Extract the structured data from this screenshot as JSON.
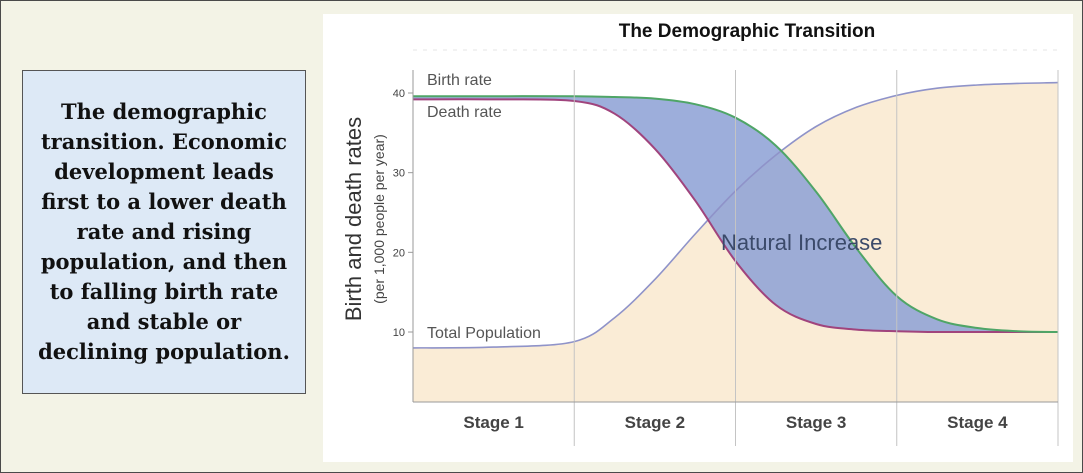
{
  "side_box": {
    "text": "The demographic transition.  Economic development leads first to a lower death rate and rising population, and then to falling birth rate and stable or declining population."
  },
  "chart_data": {
    "type": "line",
    "title": "The Demographic Transition",
    "ylabel": "Birth and death rates",
    "ylabel_sub": "(per 1,000 people per year)",
    "y_ticks": [
      10,
      20,
      30,
      40
    ],
    "ylim": [
      0,
      41.5
    ],
    "x_categories": [
      "Stage 1",
      "Stage 2",
      "Stage 3",
      "Stage 4"
    ],
    "x": [
      0,
      0.5,
      1,
      1.25,
      1.5,
      1.75,
      2,
      2.25,
      2.5,
      2.75,
      3,
      3.25,
      3.5,
      3.75,
      4
    ],
    "series": [
      {
        "name": "Birth rate",
        "color": "#4fa567",
        "values": [
          39.6,
          39.6,
          39.6,
          39.5,
          39.3,
          38.6,
          36.9,
          33.4,
          27.6,
          20.5,
          14.5,
          11.6,
          10.5,
          10.1,
          10.0
        ]
      },
      {
        "name": "Death rate",
        "color": "#a0447d",
        "values": [
          39.2,
          39.2,
          39.0,
          37.4,
          33.0,
          26.5,
          18.9,
          13.4,
          11.0,
          10.3,
          10.1,
          10.0,
          10.0,
          10.0,
          10.0
        ]
      },
      {
        "name": "Total Population",
        "color": "#8f93c9",
        "values": [
          8.0,
          8.1,
          8.8,
          11.8,
          16.6,
          22.3,
          27.7,
          32.2,
          35.8,
          38.2,
          39.7,
          40.6,
          41.0,
          41.2,
          41.3
        ]
      }
    ],
    "annotation": "Natural Increase",
    "colors": {
      "natural_increase_fill": "#8fa3d6",
      "population_fill": "#faecd6",
      "stage_line": "#c4c4c4",
      "axis": "#9a9a9a"
    }
  }
}
